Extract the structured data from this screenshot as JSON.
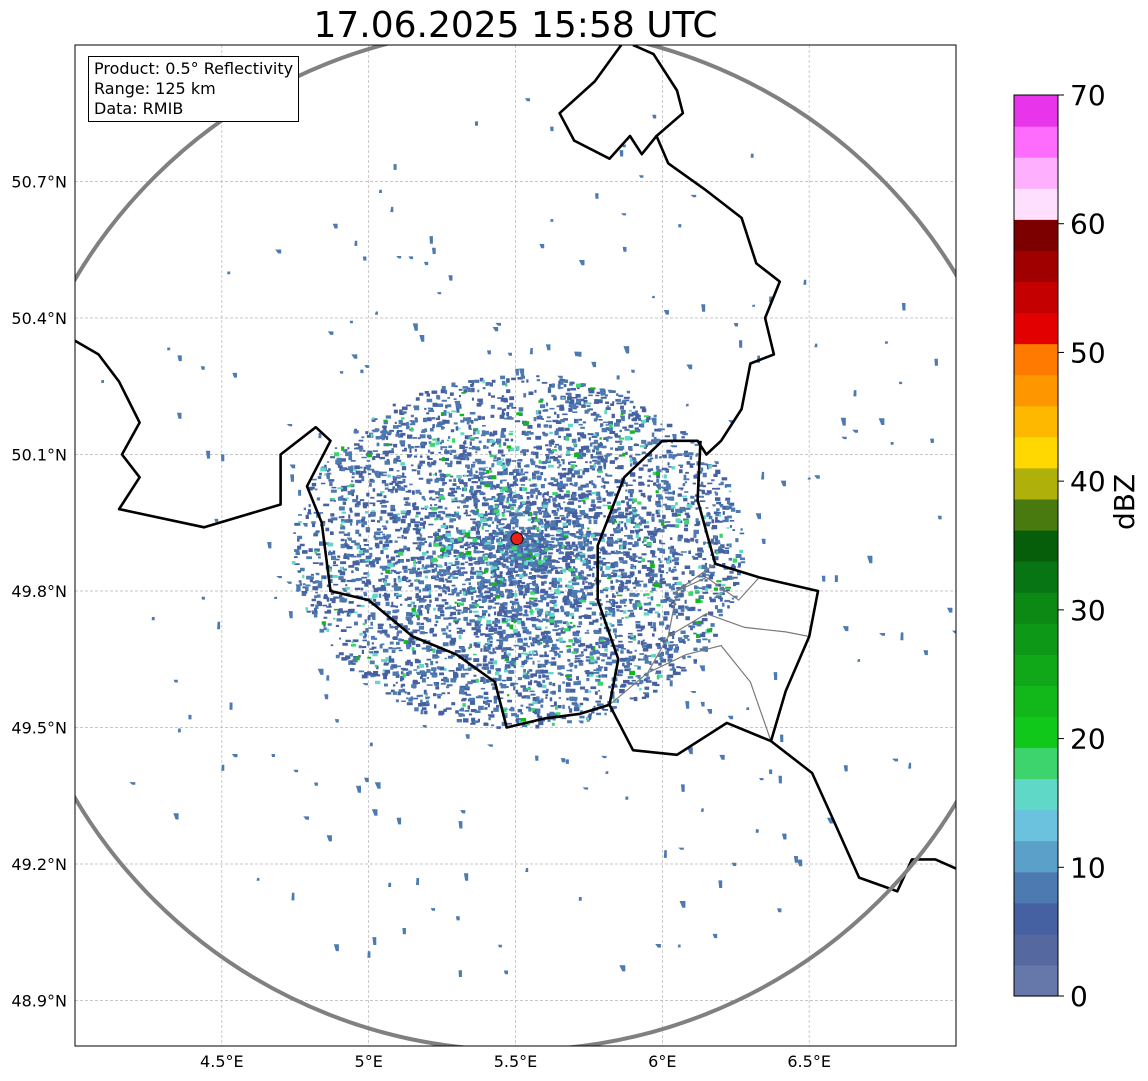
{
  "title": "17.06.2025 15:58 UTC",
  "info": {
    "product": "Product: 0.5° Reflectivity",
    "range": "Range: 125 km",
    "source": "Data: RMIB"
  },
  "map_extent": {
    "lon": [
      4.0,
      7.0
    ],
    "lat": [
      48.8,
      51.0
    ]
  },
  "radar_site": {
    "lon": 5.505,
    "lat": 49.915,
    "marker_color": "#e8201a"
  },
  "range_km": 125,
  "lon_ticks": [
    {
      "value": 4.5,
      "label": "4.5°E"
    },
    {
      "value": 5.0,
      "label": "5°E"
    },
    {
      "value": 5.5,
      "label": "5.5°E"
    },
    {
      "value": 6.0,
      "label": "6°E"
    },
    {
      "value": 6.5,
      "label": "6.5°E"
    }
  ],
  "lat_ticks": [
    {
      "value": 50.7,
      "label": "50.7°N"
    },
    {
      "value": 50.4,
      "label": "50.4°N"
    },
    {
      "value": 50.1,
      "label": "50.1°N"
    },
    {
      "value": 49.8,
      "label": "49.8°N"
    },
    {
      "value": 49.5,
      "label": "49.5°N"
    },
    {
      "value": 49.2,
      "label": "49.2°N"
    },
    {
      "value": 48.9,
      "label": "48.9°N"
    }
  ],
  "colorbar": {
    "label": "dBZ",
    "min": 0,
    "max": 70,
    "ticks": [
      {
        "value": 0,
        "label": "0"
      },
      {
        "value": 10,
        "label": "10"
      },
      {
        "value": 20,
        "label": "20"
      },
      {
        "value": 30,
        "label": "30"
      },
      {
        "value": 40,
        "label": "40"
      },
      {
        "value": 50,
        "label": "50"
      },
      {
        "value": 60,
        "label": "60"
      },
      {
        "value": 70,
        "label": "70"
      }
    ],
    "colors": [
      "#6677aa",
      "#5668a0",
      "#4561a1",
      "#4d7ab0",
      "#5aa0c8",
      "#6ac2de",
      "#60d8c8",
      "#3dd46e",
      "#10c81a",
      "#12b81a",
      "#10a818",
      "#0e9818",
      "#0c8814",
      "#087514",
      "#065e0a",
      "#497a10",
      "#afb00a",
      "#fed800",
      "#feb800",
      "#fe9600",
      "#fe7a00",
      "#e20000",
      "#c40000",
      "#a00000",
      "#7c0000",
      "#fee0fe",
      "#feb0fe",
      "#fe6cfe",
      "#e834ea"
    ]
  },
  "borders": {
    "country": [
      [
        [
          4.0,
          50.35
        ],
        [
          4.08,
          50.32
        ],
        [
          4.15,
          50.26
        ],
        [
          4.22,
          50.17
        ],
        [
          4.16,
          50.1
        ],
        [
          4.22,
          50.05
        ],
        [
          4.15,
          49.98
        ],
        [
          4.44,
          49.94
        ],
        [
          4.7,
          49.99
        ],
        [
          4.7,
          50.1
        ],
        [
          4.82,
          50.16
        ],
        [
          4.87,
          50.13
        ],
        [
          4.79,
          50.03
        ],
        [
          4.84,
          49.95
        ],
        [
          4.87,
          49.8
        ],
        [
          5.0,
          49.78
        ],
        [
          5.15,
          49.7
        ],
        [
          5.3,
          49.66
        ],
        [
          5.43,
          49.6
        ],
        [
          5.47,
          49.5
        ],
        [
          5.6,
          49.52
        ],
        [
          5.72,
          49.53
        ],
        [
          5.82,
          49.55
        ],
        [
          5.9,
          49.45
        ],
        [
          6.05,
          49.44
        ],
        [
          6.22,
          49.51
        ],
        [
          6.37,
          49.47
        ],
        [
          6.51,
          49.4
        ],
        [
          6.58,
          49.3
        ],
        [
          6.67,
          49.17
        ],
        [
          6.8,
          49.14
        ],
        [
          6.85,
          49.21
        ],
        [
          6.93,
          49.21
        ],
        [
          7.0,
          49.19
        ]
      ],
      [
        [
          5.82,
          49.55
        ],
        [
          5.85,
          49.65
        ],
        [
          5.78,
          49.78
        ],
        [
          5.78,
          49.9
        ],
        [
          5.87,
          50.05
        ],
        [
          6.0,
          50.13
        ],
        [
          6.12,
          50.13
        ],
        [
          6.15,
          50.1
        ],
        [
          6.2,
          50.13
        ],
        [
          6.27,
          50.2
        ],
        [
          6.3,
          50.3
        ],
        [
          6.38,
          50.32
        ],
        [
          6.35,
          50.4
        ],
        [
          6.4,
          50.48
        ],
        [
          6.32,
          50.52
        ],
        [
          6.27,
          50.62
        ],
        [
          6.15,
          50.68
        ],
        [
          6.02,
          50.74
        ],
        [
          5.98,
          50.8
        ],
        [
          6.07,
          50.85
        ],
        [
          6.05,
          50.9
        ],
        [
          5.97,
          50.98
        ],
        [
          5.9,
          51.0
        ]
      ],
      [
        [
          5.86,
          51.0
        ],
        [
          5.77,
          50.92
        ],
        [
          5.65,
          50.85
        ],
        [
          5.7,
          50.79
        ],
        [
          5.82,
          50.75
        ],
        [
          5.89,
          50.8
        ],
        [
          5.93,
          50.76
        ],
        [
          5.98,
          50.8
        ]
      ],
      [
        [
          6.13,
          50.13
        ],
        [
          6.12,
          50.0
        ],
        [
          6.18,
          49.86
        ],
        [
          6.33,
          49.83
        ],
        [
          6.53,
          49.8
        ],
        [
          6.5,
          49.7
        ],
        [
          6.42,
          49.58
        ],
        [
          6.37,
          49.47
        ]
      ]
    ],
    "region": [
      [
        [
          5.82,
          49.55
        ],
        [
          5.95,
          49.62
        ],
        [
          6.02,
          49.7
        ],
        [
          6.05,
          49.8
        ],
        [
          6.18,
          49.86
        ]
      ],
      [
        [
          5.95,
          49.62
        ],
        [
          6.08,
          49.66
        ],
        [
          6.2,
          49.68
        ],
        [
          6.3,
          49.6
        ],
        [
          6.37,
          49.47
        ]
      ],
      [
        [
          6.02,
          49.7
        ],
        [
          6.15,
          49.75
        ],
        [
          6.28,
          49.72
        ],
        [
          6.42,
          49.71
        ],
        [
          6.5,
          49.7
        ]
      ],
      [
        [
          6.05,
          49.8
        ],
        [
          6.15,
          49.83
        ],
        [
          6.26,
          49.78
        ],
        [
          6.33,
          49.83
        ]
      ]
    ]
  }
}
